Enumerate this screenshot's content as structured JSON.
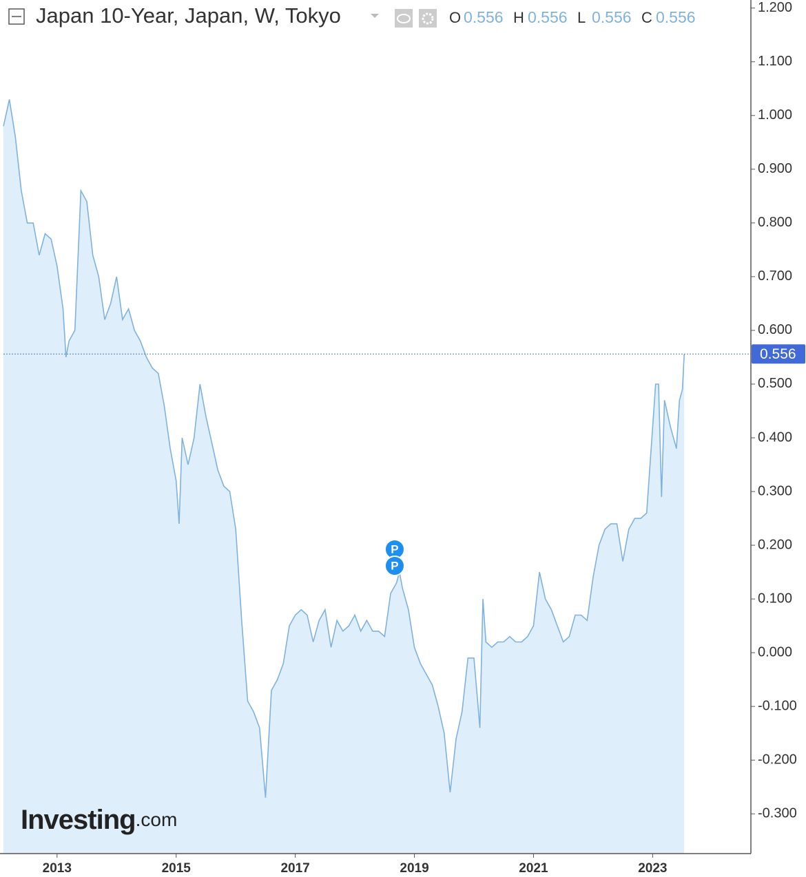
{
  "chart_data": {
    "type": "area",
    "title": "Japan 10-Year, Japan, W, Tokyo",
    "ohlc": {
      "labels": [
        "O",
        "H",
        "L",
        "C"
      ],
      "values": [
        0.556,
        0.556,
        0.556,
        0.556
      ]
    },
    "last_price": {
      "value": 0.556,
      "label": "0.556"
    },
    "markers": [
      "P",
      "P"
    ],
    "logo": [
      "Investing",
      ".com"
    ],
    "color": "#7fb2e0",
    "fill": "#deeefa",
    "x": [
      2012.1,
      2012.2,
      2012.3,
      2012.4,
      2012.5,
      2012.6,
      2012.7,
      2012.8,
      2012.9,
      2013.0,
      2013.1,
      2013.15,
      2013.2,
      2013.3,
      2013.4,
      2013.5,
      2013.6,
      2013.7,
      2013.8,
      2013.9,
      2014.0,
      2014.1,
      2014.2,
      2014.3,
      2014.4,
      2014.5,
      2014.6,
      2014.7,
      2014.8,
      2014.9,
      2015.0,
      2015.05,
      2015.1,
      2015.2,
      2015.3,
      2015.4,
      2015.5,
      2015.6,
      2015.7,
      2015.8,
      2015.9,
      2016.0,
      2016.1,
      2016.2,
      2016.3,
      2016.4,
      2016.5,
      2016.6,
      2016.7,
      2016.8,
      2016.9,
      2017.0,
      2017.1,
      2017.2,
      2017.3,
      2017.4,
      2017.5,
      2017.6,
      2017.7,
      2017.8,
      2017.9,
      2018.0,
      2018.1,
      2018.2,
      2018.3,
      2018.4,
      2018.5,
      2018.6,
      2018.7,
      2018.75,
      2018.8,
      2018.9,
      2019.0,
      2019.1,
      2019.2,
      2019.3,
      2019.4,
      2019.5,
      2019.6,
      2019.7,
      2019.8,
      2019.9,
      2020.0,
      2020.1,
      2020.15,
      2020.2,
      2020.3,
      2020.4,
      2020.5,
      2020.6,
      2020.7,
      2020.8,
      2020.9,
      2021.0,
      2021.1,
      2021.2,
      2021.3,
      2021.4,
      2021.5,
      2021.6,
      2021.7,
      2021.8,
      2021.9,
      2022.0,
      2022.1,
      2022.2,
      2022.3,
      2022.4,
      2022.5,
      2022.6,
      2022.7,
      2022.8,
      2022.9,
      2023.0,
      2023.05,
      2023.1,
      2023.15,
      2023.2,
      2023.3,
      2023.4,
      2023.45,
      2023.5,
      2023.53
    ],
    "values": [
      0.98,
      1.03,
      0.96,
      0.86,
      0.8,
      0.8,
      0.74,
      0.78,
      0.77,
      0.72,
      0.64,
      0.55,
      0.58,
      0.6,
      0.86,
      0.84,
      0.74,
      0.7,
      0.62,
      0.65,
      0.7,
      0.62,
      0.64,
      0.6,
      0.58,
      0.55,
      0.53,
      0.52,
      0.46,
      0.38,
      0.32,
      0.24,
      0.4,
      0.35,
      0.4,
      0.5,
      0.44,
      0.39,
      0.34,
      0.31,
      0.3,
      0.23,
      0.06,
      -0.09,
      -0.11,
      -0.14,
      -0.27,
      -0.07,
      -0.05,
      -0.02,
      0.05,
      0.07,
      0.08,
      0.07,
      0.02,
      0.06,
      0.08,
      0.01,
      0.06,
      0.04,
      0.05,
      0.07,
      0.04,
      0.06,
      0.04,
      0.04,
      0.03,
      0.11,
      0.13,
      0.15,
      0.12,
      0.08,
      0.01,
      -0.02,
      -0.04,
      -0.06,
      -0.1,
      -0.15,
      -0.26,
      -0.16,
      -0.11,
      -0.01,
      -0.01,
      -0.14,
      0.1,
      0.02,
      0.01,
      0.02,
      0.02,
      0.03,
      0.02,
      0.02,
      0.03,
      0.05,
      0.15,
      0.1,
      0.08,
      0.05,
      0.02,
      0.03,
      0.07,
      0.07,
      0.06,
      0.14,
      0.2,
      0.23,
      0.24,
      0.24,
      0.17,
      0.23,
      0.25,
      0.25,
      0.26,
      0.42,
      0.5,
      0.5,
      0.29,
      0.47,
      0.42,
      0.38,
      0.47,
      0.49,
      0.556
    ],
    "xlim": [
      2012.1,
      2024.65
    ],
    "xticks": [
      2013,
      2015,
      2017,
      2019,
      2021,
      2023
    ],
    "ylim": [
      -0.374,
      1.215
    ],
    "yticks": [
      {
        "value": 1.2,
        "label": "1.200"
      },
      {
        "value": 1.1,
        "label": "1.100"
      },
      {
        "value": 1.0,
        "label": "1.000"
      },
      {
        "value": 0.9,
        "label": "0.900"
      },
      {
        "value": 0.8,
        "label": "0.800"
      },
      {
        "value": 0.7,
        "label": "0.700"
      },
      {
        "value": 0.6,
        "label": "0.600"
      },
      {
        "value": 0.5,
        "label": "0.500"
      },
      {
        "value": 0.4,
        "label": "0.400"
      },
      {
        "value": 0.3,
        "label": "0.300"
      },
      {
        "value": 0.2,
        "label": "0.200"
      },
      {
        "value": 0.1,
        "label": "0.100"
      },
      {
        "value": 0,
        "label": "0.000"
      },
      {
        "value": -0.1,
        "label": "-0.100"
      },
      {
        "value": -0.2,
        "label": "-0.200"
      },
      {
        "value": -0.3,
        "label": "-0.300"
      }
    ]
  }
}
